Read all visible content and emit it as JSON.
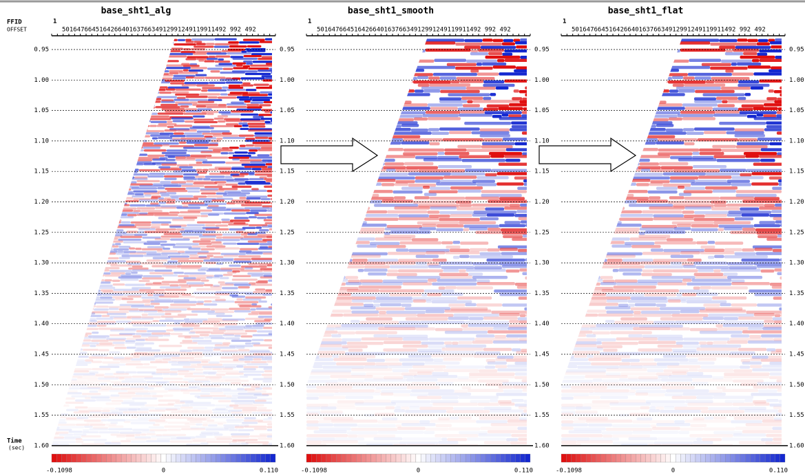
{
  "labels": {
    "ffid": "FFID",
    "offset": "OFFSET",
    "time": "Time",
    "time_unit": "(sec)"
  },
  "time_ticks": [
    "0.95",
    "1.00",
    "1.05",
    "1.10",
    "1.15",
    "1.20",
    "1.25",
    "1.30",
    "1.35",
    "1.40",
    "1.45",
    "1.50",
    "1.55",
    "1.60"
  ],
  "panels": [
    {
      "title": "base_sht1_alg",
      "ffid": "1",
      "offsets": "50164766451642664016376634912991249119911492 992 492",
      "colorbar": {
        "min": "-0.1098",
        "mid": "0",
        "max": "0.110"
      }
    },
    {
      "title": "base_sht1_smooth",
      "ffid": "1",
      "offsets": "50164766451642664016376634912991249119911492 992 492",
      "colorbar": {
        "min": "-0.1098",
        "mid": "0",
        "max": "0.110"
      }
    },
    {
      "title": "base_sht1_flat",
      "ffid": "1",
      "offsets": "50164766451642664016376634912991249119911492 992 492",
      "colorbar": {
        "min": "-0.1098",
        "mid": "0",
        "max": "0.110"
      }
    }
  ]
}
